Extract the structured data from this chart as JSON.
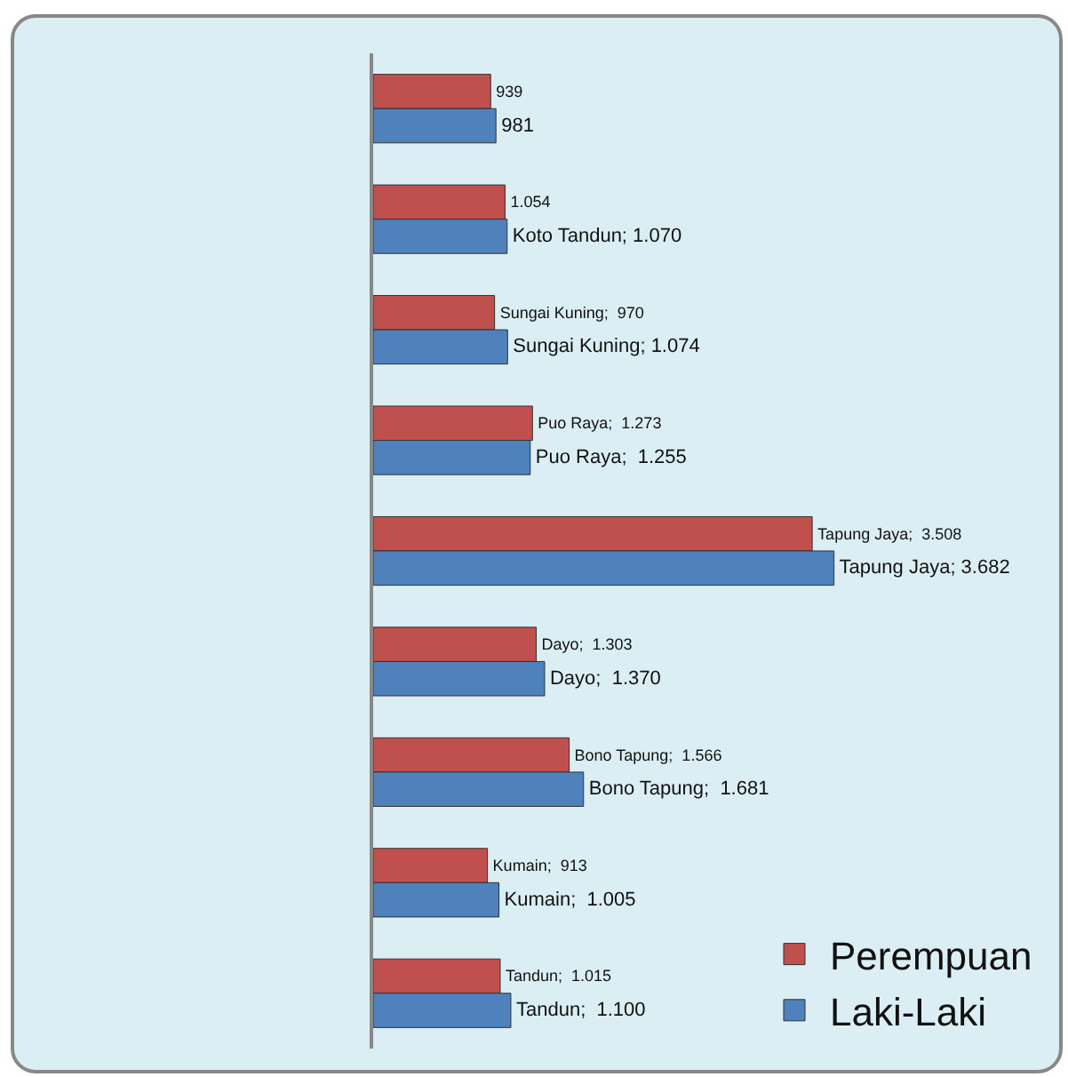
{
  "chart_data": {
    "type": "bar",
    "orientation": "horizontal",
    "categories": [
      null,
      null,
      null,
      null,
      null,
      null,
      null,
      null,
      null
    ],
    "series": [
      {
        "name": "Perempuan",
        "color": "#c0504d",
        "values": [
          939,
          1054,
          970,
          1273,
          3508,
          1303,
          1566,
          913,
          1015
        ],
        "value_labels": [
          "939",
          "1.054",
          "Sungai Kuning;  970",
          "Puo Raya;  1.273",
          "Tapung Jaya;  3.508",
          "Dayo;  1.303",
          "Bono Tapung;  1.566",
          "Kumain;  913",
          "Tandun;  1.015"
        ]
      },
      {
        "name": "Laki-Laki",
        "color": "#4f81bd",
        "values": [
          981,
          1070,
          1074,
          1255,
          3682,
          1370,
          1681,
          1005,
          1100
        ],
        "value_labels": [
          "981",
          "Koto Tandun; 1.070",
          "Sungai Kuning; 1.074",
          "Puo Raya;  1.255",
          "Tapung Jaya; 3.682",
          "Dayo;  1.370",
          "Bono Tapung;  1.681",
          "Kumain;  1.005",
          "Tandun;  1.100"
        ]
      }
    ],
    "tick_labels": false,
    "grid": false,
    "legend": "bottom right"
  }
}
